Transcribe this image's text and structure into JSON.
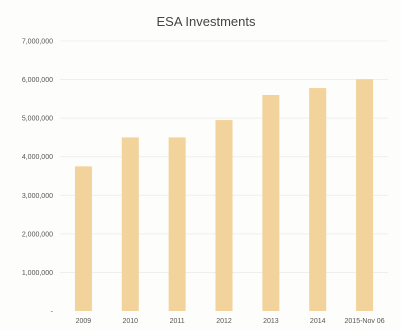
{
  "chart_data": {
    "type": "bar",
    "title": "ESA Investments",
    "xlabel": "",
    "ylabel": "",
    "categories": [
      "2009",
      "2010",
      "2011",
      "2012",
      "2013",
      "2014",
      "2015-Nov 06"
    ],
    "values": [
      3750000,
      4500000,
      4500000,
      4950000,
      5600000,
      5780000,
      6010000
    ],
    "ylim": [
      0,
      7000000
    ],
    "yticks": [
      0,
      1000000,
      2000000,
      3000000,
      4000000,
      5000000,
      6000000,
      7000000
    ],
    "ytick_labels": [
      "-",
      "1,000,000",
      "2,000,000",
      "3,000,000",
      "4,000,000",
      "5,000,000",
      "6,000,000",
      "7,000,000"
    ],
    "grid": true,
    "legend": "none",
    "bar_color": "#f2d39b"
  }
}
